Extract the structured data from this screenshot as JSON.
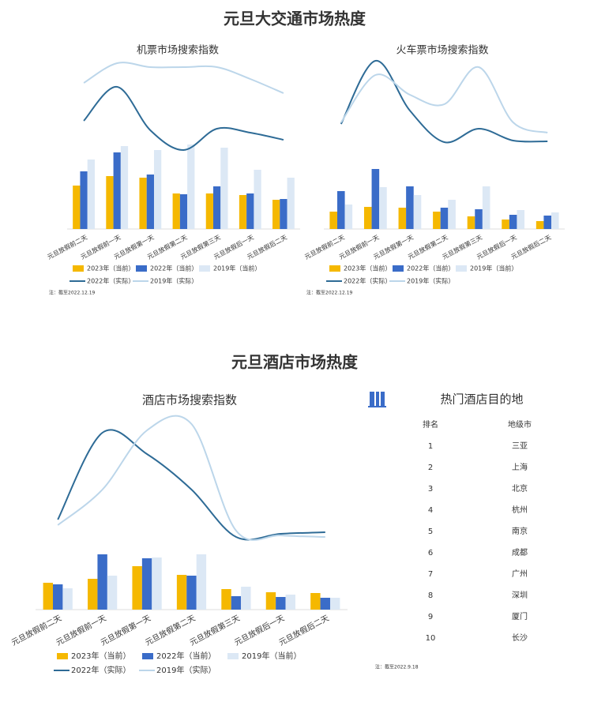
{
  "sections": {
    "transport": "元旦大交通市场热度",
    "hotel": "元旦酒店市场热度"
  },
  "chart_data": [
    {
      "type": "combo",
      "title": "机票市场搜索指数",
      "note": "注：截至2022.12.19",
      "categories": [
        "元旦放假前二天",
        "元旦放假前一天",
        "元旦放假第一天",
        "元旦放假第二天",
        "元旦放假第三天",
        "元旦放假后一天",
        "元旦放假后二天"
      ],
      "ylim": [
        0,
        230
      ],
      "series": [
        {
          "name": "2023年（当前）",
          "type": "bar",
          "color": "#f5b800",
          "values": [
            55,
            67,
            65,
            45,
            45,
            43,
            37
          ]
        },
        {
          "name": "2022年（当前）",
          "type": "bar",
          "color": "#3a6cc8",
          "values": [
            73,
            97,
            69,
            44,
            54,
            45,
            38
          ]
        },
        {
          "name": "2019年（当前）",
          "type": "bar",
          "color": "#dce8f5",
          "values": [
            88,
            105,
            100,
            107,
            103,
            75,
            65
          ]
        },
        {
          "name": "2022年（实际）",
          "type": "line",
          "color": "#2e6b96",
          "values": [
            137,
            180,
            125,
            100,
            127,
            122,
            113
          ]
        },
        {
          "name": "2019年（实际）",
          "type": "line",
          "color": "#bcd6ea",
          "values": [
            185,
            210,
            205,
            205,
            205,
            190,
            172
          ]
        }
      ]
    },
    {
      "type": "combo",
      "title": "火车票市场搜索指数",
      "note": "注：截至2022.12.19",
      "categories": [
        "元旦放假前二天",
        "元旦放假前一天",
        "元旦放假第一天",
        "元旦放假第二天",
        "元旦放假第三天",
        "元旦放假后一天",
        "元旦放假后二天"
      ],
      "ylim": [
        0,
        230
      ],
      "series": [
        {
          "name": "2023年（当前）",
          "type": "bar",
          "color": "#f5b800",
          "values": [
            22,
            28,
            27,
            22,
            16,
            12,
            10
          ]
        },
        {
          "name": "2022年（当前）",
          "type": "bar",
          "color": "#3a6cc8",
          "values": [
            48,
            76,
            54,
            27,
            25,
            18,
            17
          ]
        },
        {
          "name": "2019年（当前）",
          "type": "bar",
          "color": "#dce8f5",
          "values": [
            31,
            53,
            43,
            37,
            54,
            24,
            21
          ]
        },
        {
          "name": "2022年（实际）",
          "type": "line",
          "color": "#2e6b96",
          "values": [
            133,
            213,
            150,
            110,
            127,
            112,
            111
          ]
        },
        {
          "name": "2019年（实际）",
          "type": "line",
          "color": "#bcd6ea",
          "values": [
            135,
            195,
            170,
            158,
            205,
            135,
            122
          ]
        }
      ]
    },
    {
      "type": "combo",
      "title": "酒店市场搜索指数",
      "categories": [
        "元旦放假前二天",
        "元旦放假前一天",
        "元旦放假第一天",
        "元旦放假第二天",
        "元旦放假第三天",
        "元旦放假后一天",
        "元旦放假后二天"
      ],
      "ylim": [
        0,
        250
      ],
      "series": [
        {
          "name": "2023年（当前）",
          "type": "bar",
          "color": "#f5b800",
          "values": [
            34,
            39,
            55,
            44,
            26,
            22,
            21
          ]
        },
        {
          "name": "2022年（当前）",
          "type": "bar",
          "color": "#3a6cc8",
          "values": [
            32,
            70,
            65,
            43,
            17,
            16,
            15
          ]
        },
        {
          "name": "2019年（当前）",
          "type": "bar",
          "color": "#dce8f5",
          "values": [
            27,
            43,
            66,
            70,
            29,
            19,
            15
          ]
        },
        {
          "name": "2022年（实际）",
          "type": "line",
          "color": "#2e6b96",
          "values": [
            114,
            224,
            197,
            152,
            92,
            96,
            98
          ]
        },
        {
          "name": "2019年（实际）",
          "type": "line",
          "color": "#bcd6ea",
          "values": [
            107,
            152,
            227,
            235,
            100,
            94,
            92
          ]
        }
      ]
    }
  ],
  "table": {
    "title": "热门酒店目的地",
    "header": [
      "排名",
      "地级市"
    ],
    "rows": [
      [
        1,
        "三亚"
      ],
      [
        2,
        "上海"
      ],
      [
        3,
        "北京"
      ],
      [
        4,
        "杭州"
      ],
      [
        5,
        "南京"
      ],
      [
        6,
        "成都"
      ],
      [
        7,
        "广州"
      ],
      [
        8,
        "深圳"
      ],
      [
        9,
        "厦门"
      ],
      [
        10,
        "长沙"
      ]
    ],
    "note": "注：截至2022.9.18"
  }
}
